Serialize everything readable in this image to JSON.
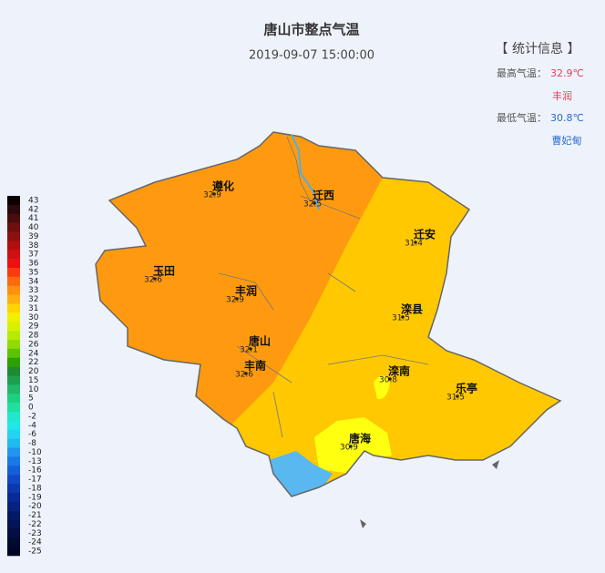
{
  "header": {
    "title": "唐山市整点气温",
    "datetime": "2019-09-07 15:00:00"
  },
  "stats": {
    "heading": "【 统计信息 】",
    "max_label": "最高气温：",
    "max_value": "32.9℃",
    "max_station": "丰润",
    "min_label": "最低气温：",
    "min_value": "30.8℃",
    "min_station": "曹妃甸"
  },
  "legend": {
    "levels": [
      43,
      42,
      41,
      40,
      39,
      38,
      37,
      36,
      35,
      34,
      33,
      32,
      31,
      30,
      29,
      28,
      26,
      24,
      22,
      20,
      15,
      10,
      5,
      0,
      -2,
      -4,
      -6,
      -8,
      -10,
      -13,
      -16,
      -17,
      -18,
      -19,
      -20,
      -21,
      -22,
      -23,
      -24,
      -25
    ],
    "colors": [
      "#0d0000",
      "#2a0a0a",
      "#4a0d0d",
      "#6b0f0f",
      "#8c1010",
      "#b00f0f",
      "#d01010",
      "#ee1010",
      "#ff3a10",
      "#ff6a10",
      "#ff9010",
      "#ffb010",
      "#ffd400",
      "#f0f000",
      "#d8f000",
      "#b8ea00",
      "#90dc00",
      "#5cc400",
      "#2ea000",
      "#208a30",
      "#1f9e50",
      "#22b86a",
      "#1dd080",
      "#20e0a0",
      "#20e8c8",
      "#20e8e8",
      "#22d4f0",
      "#22b8f0",
      "#2096f0",
      "#1a78e8",
      "#1460d8",
      "#1048c8",
      "#0c38b0",
      "#082a98",
      "#062280",
      "#041a68",
      "#031454",
      "#020e44",
      "#020a34",
      "#010624"
    ]
  },
  "stations": [
    {
      "name": "遵化",
      "value": "32.9"
    },
    {
      "name": "迁西",
      "value": "32.5"
    },
    {
      "name": "迁安",
      "value": "31.4"
    },
    {
      "name": "玉田",
      "value": "32.6"
    },
    {
      "name": "丰润",
      "value": "32.9"
    },
    {
      "name": "唐山",
      "value": "32.1"
    },
    {
      "name": "丰南",
      "value": "32.6"
    },
    {
      "name": "滦县",
      "value": "31.5"
    },
    {
      "name": "滦南",
      "value": "30.8"
    },
    {
      "name": "乐亭",
      "value": "31.5"
    },
    {
      "name": "唐海",
      "value": "30.9"
    }
  ]
}
